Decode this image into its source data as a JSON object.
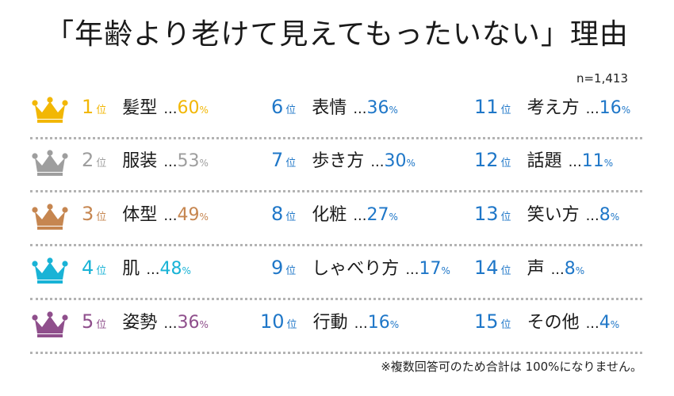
{
  "title": "「年齢より老けて見えてもったいない」理由",
  "sample": "n=1,413",
  "footnote": "※複数回答可のため合計は 100%になりません。",
  "rank_suffix": "位",
  "dots": "...",
  "percent_sign": "%",
  "colors": {
    "gold": "#f2b705",
    "silver": "#9e9e9e",
    "bronze": "#c68650",
    "cyan": "#19b3d6",
    "purple": "#8f4f8c",
    "blue": "#1f77c8"
  },
  "chart_data": {
    "type": "table",
    "title": "「年齢より老けて見えてもったいない」理由",
    "unit": "%",
    "items": [
      {
        "rank": 1,
        "label": "髪型",
        "value": 60
      },
      {
        "rank": 2,
        "label": "服装",
        "value": 53
      },
      {
        "rank": 3,
        "label": "体型",
        "value": 49
      },
      {
        "rank": 4,
        "label": "肌",
        "value": 48
      },
      {
        "rank": 5,
        "label": "姿勢",
        "value": 36
      },
      {
        "rank": 6,
        "label": "表情",
        "value": 36
      },
      {
        "rank": 7,
        "label": "歩き方",
        "value": 30
      },
      {
        "rank": 8,
        "label": "化粧",
        "value": 27
      },
      {
        "rank": 9,
        "label": "しゃべり方",
        "value": 17
      },
      {
        "rank": 10,
        "label": "行動",
        "value": 16
      },
      {
        "rank": 11,
        "label": "考え方",
        "value": 16
      },
      {
        "rank": 12,
        "label": "話題",
        "value": 11
      },
      {
        "rank": 13,
        "label": "笑い方",
        "value": 8
      },
      {
        "rank": 14,
        "label": "声",
        "value": 8
      },
      {
        "rank": 15,
        "label": "その他",
        "value": 4
      }
    ],
    "crown_icons": [
      "gold-crown-icon",
      "silver-crown-icon",
      "bronze-crown-icon",
      "cyan-crown-icon",
      "purple-crown-icon"
    ]
  }
}
